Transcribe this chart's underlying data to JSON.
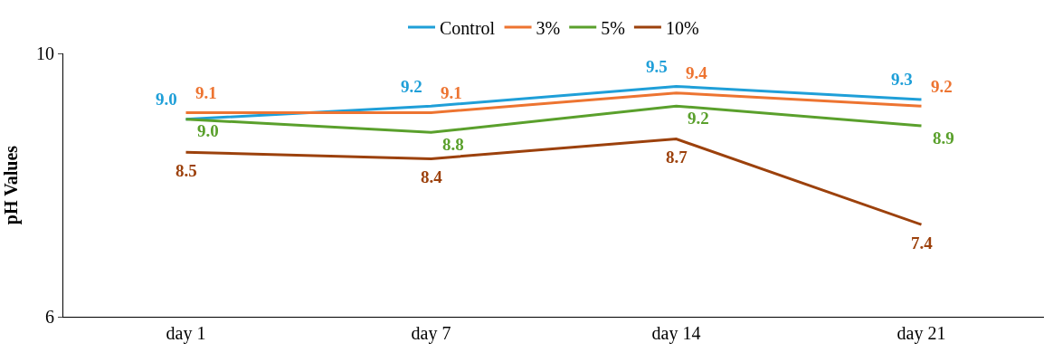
{
  "chart_data": {
    "type": "line",
    "ylabel": "pH Values",
    "categories": [
      "day 1",
      "day 7",
      "day 14",
      "day 21"
    ],
    "series": [
      {
        "name": "Control",
        "color": "#1f9fd8",
        "values": [
          9.0,
          9.2,
          9.5,
          9.3
        ],
        "value_labels": [
          "9.0",
          "9.2",
          "9.5",
          "9.3"
        ]
      },
      {
        "name": "3%",
        "color": "#ed7431",
        "values": [
          9.1,
          9.1,
          9.4,
          9.2
        ],
        "value_labels": [
          "9.1",
          "9.1",
          "9.4",
          "9.2"
        ]
      },
      {
        "name": "5%",
        "color": "#5aa02c",
        "values": [
          9.0,
          8.8,
          9.2,
          8.9
        ],
        "value_labels": [
          "9.0",
          "8.8",
          "9.2",
          "8.9"
        ]
      },
      {
        "name": "10%",
        "color": "#9c410c",
        "values": [
          8.5,
          8.4,
          8.7,
          7.4
        ],
        "value_labels": [
          "8.5",
          "8.4",
          "8.7",
          "7.4"
        ]
      }
    ],
    "ylim": [
      6,
      10
    ],
    "yticks": [
      6,
      10
    ],
    "legend": "top",
    "marker": "none",
    "line_style": "solid"
  }
}
